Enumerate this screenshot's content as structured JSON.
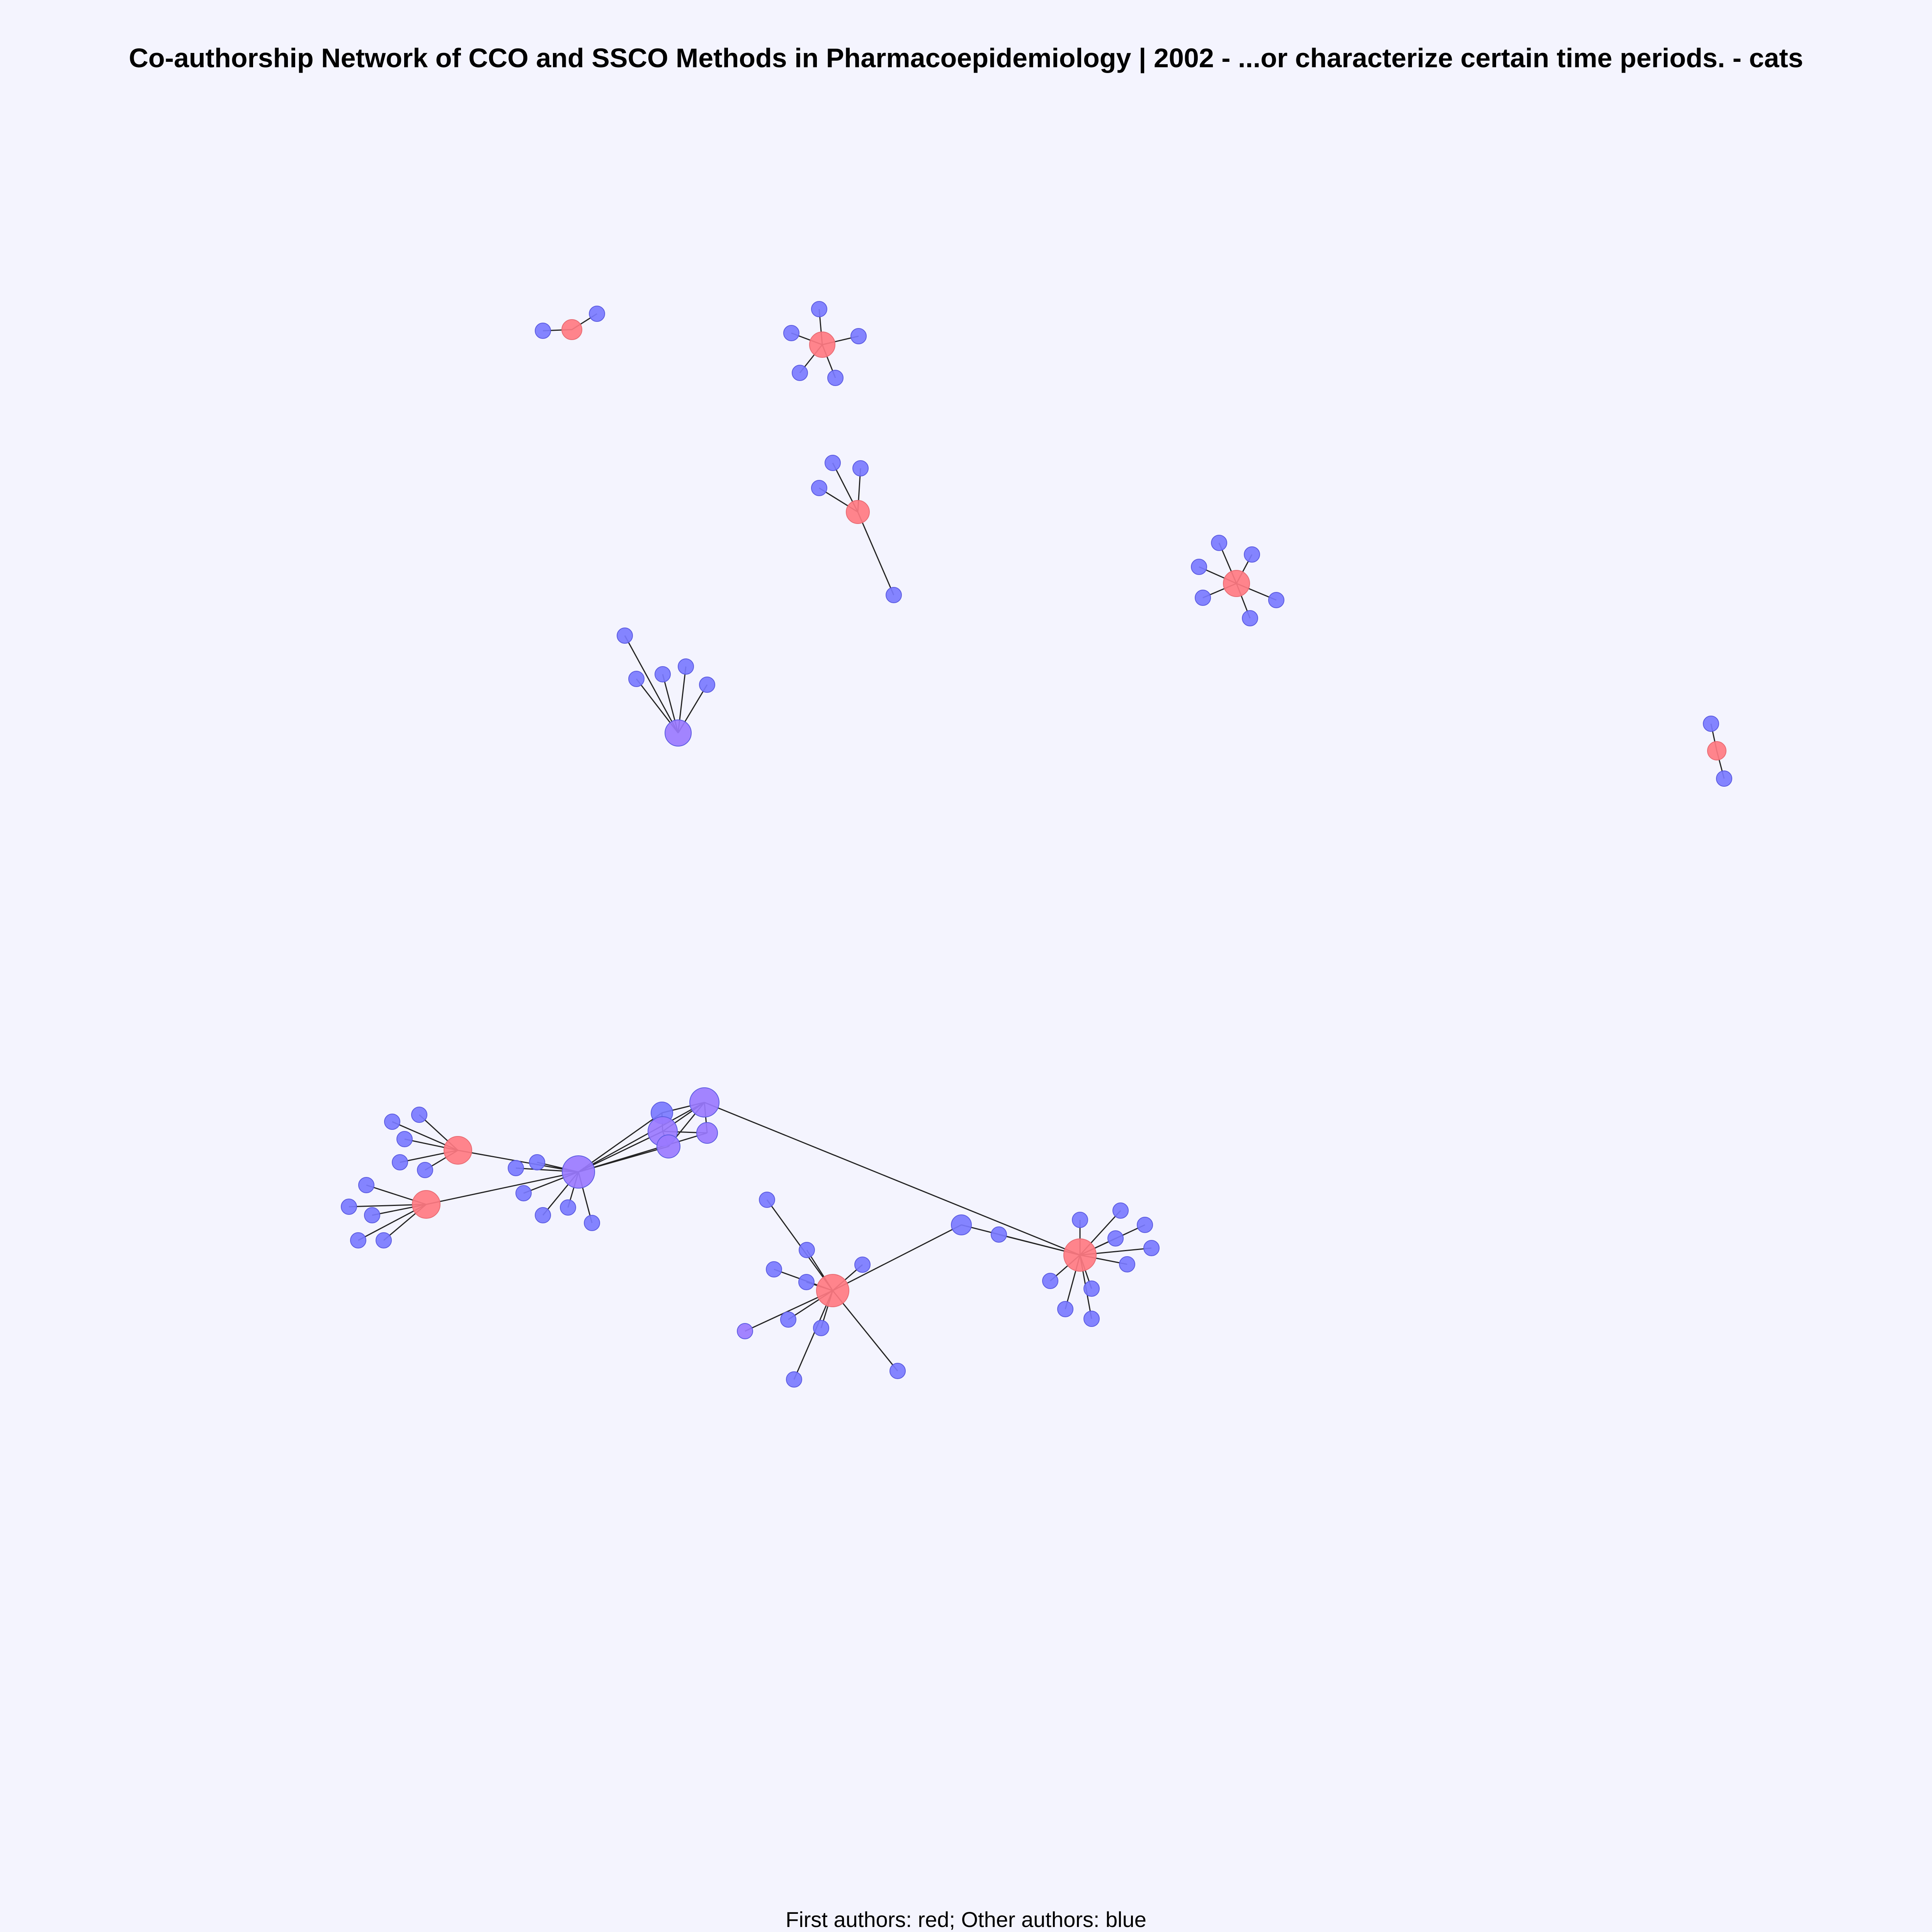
{
  "title": "Co-authorship Network of CCO and SSCO Methods in Pharmacoepidemiology |  2002  - ...or characterize certain time periods.  - cats",
  "caption": "First authors: red; Other authors: blue",
  "colors": {
    "background": "#f4f4fe",
    "first_author": "#ff7a82",
    "other_author": "#7a7aff",
    "mixed_author": "#9a7aff",
    "edge": "#222222"
  }
}
